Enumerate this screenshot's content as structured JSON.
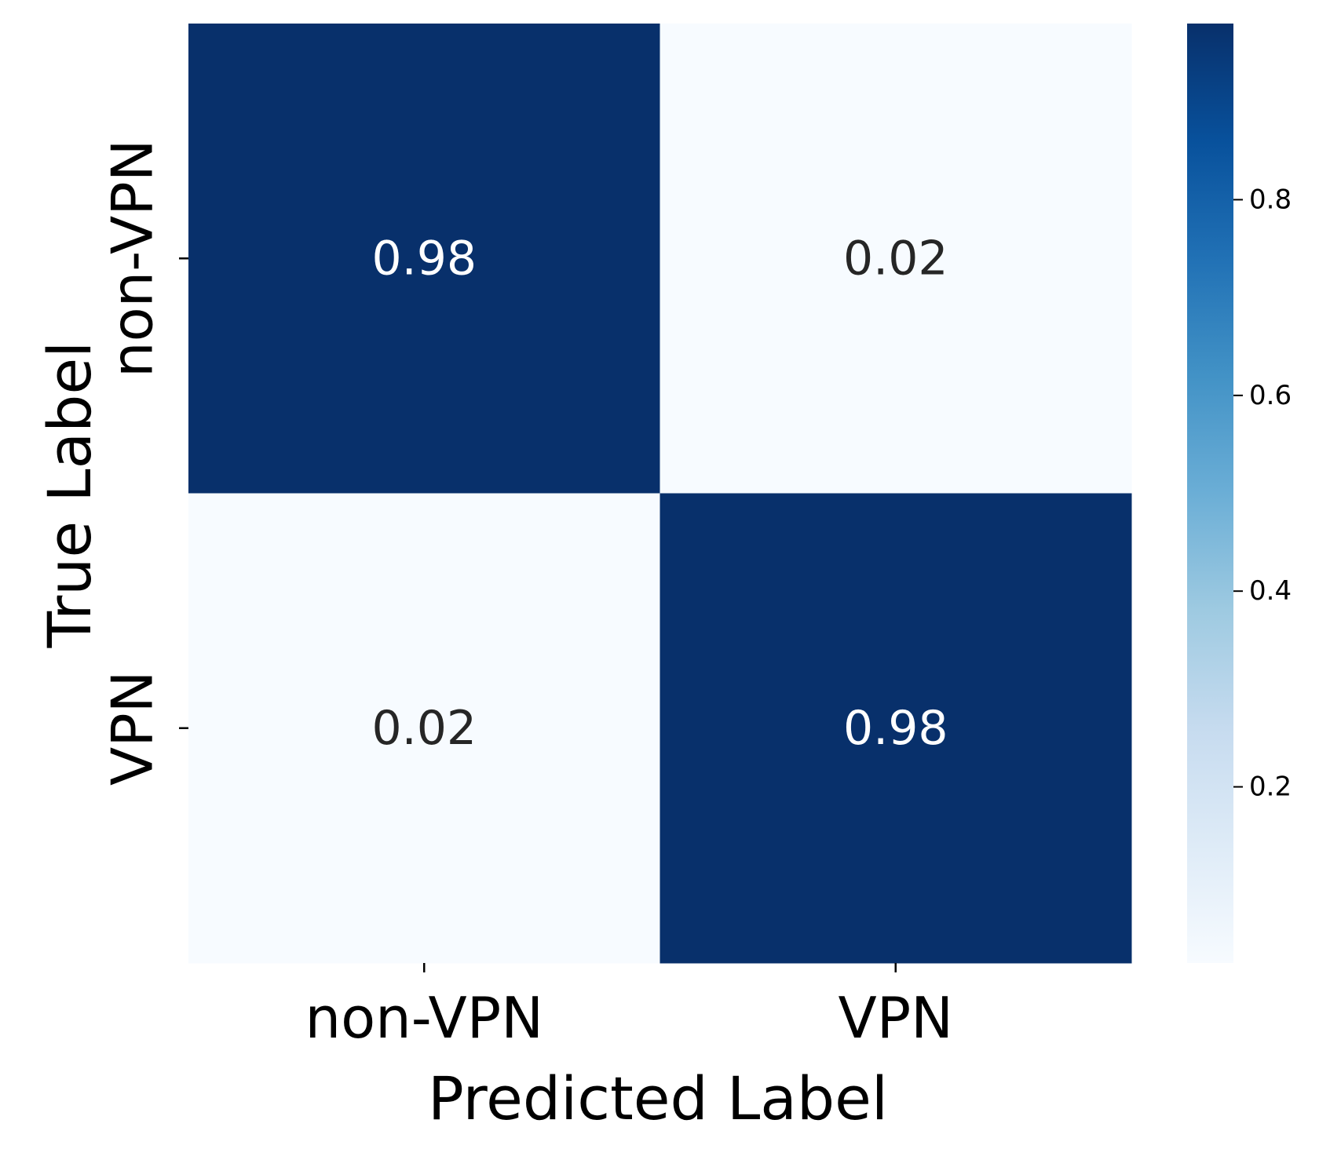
{
  "chart_data": {
    "type": "heatmap",
    "x_categories": [
      "non-VPN",
      "VPN"
    ],
    "y_categories": [
      "non-VPN",
      "VPN"
    ],
    "values": [
      [
        0.98,
        0.02
      ],
      [
        0.02,
        0.98
      ]
    ],
    "annotations": [
      [
        "0.98",
        "0.02"
      ],
      [
        "0.02",
        "0.98"
      ]
    ],
    "xlabel": "Predicted Label",
    "ylabel": "True Label",
    "colormap": "Blues",
    "colorbar": {
      "range": [
        0.02,
        0.98
      ],
      "ticks": [
        0.2,
        0.4,
        0.6,
        0.8
      ],
      "tick_labels": [
        "0.2",
        "0.4",
        "0.6",
        "0.8"
      ]
    },
    "colors": {
      "high": "#08306b",
      "low": "#f7fbff",
      "text_on_dark": "#ffffff",
      "text_on_light": "#262626"
    }
  }
}
